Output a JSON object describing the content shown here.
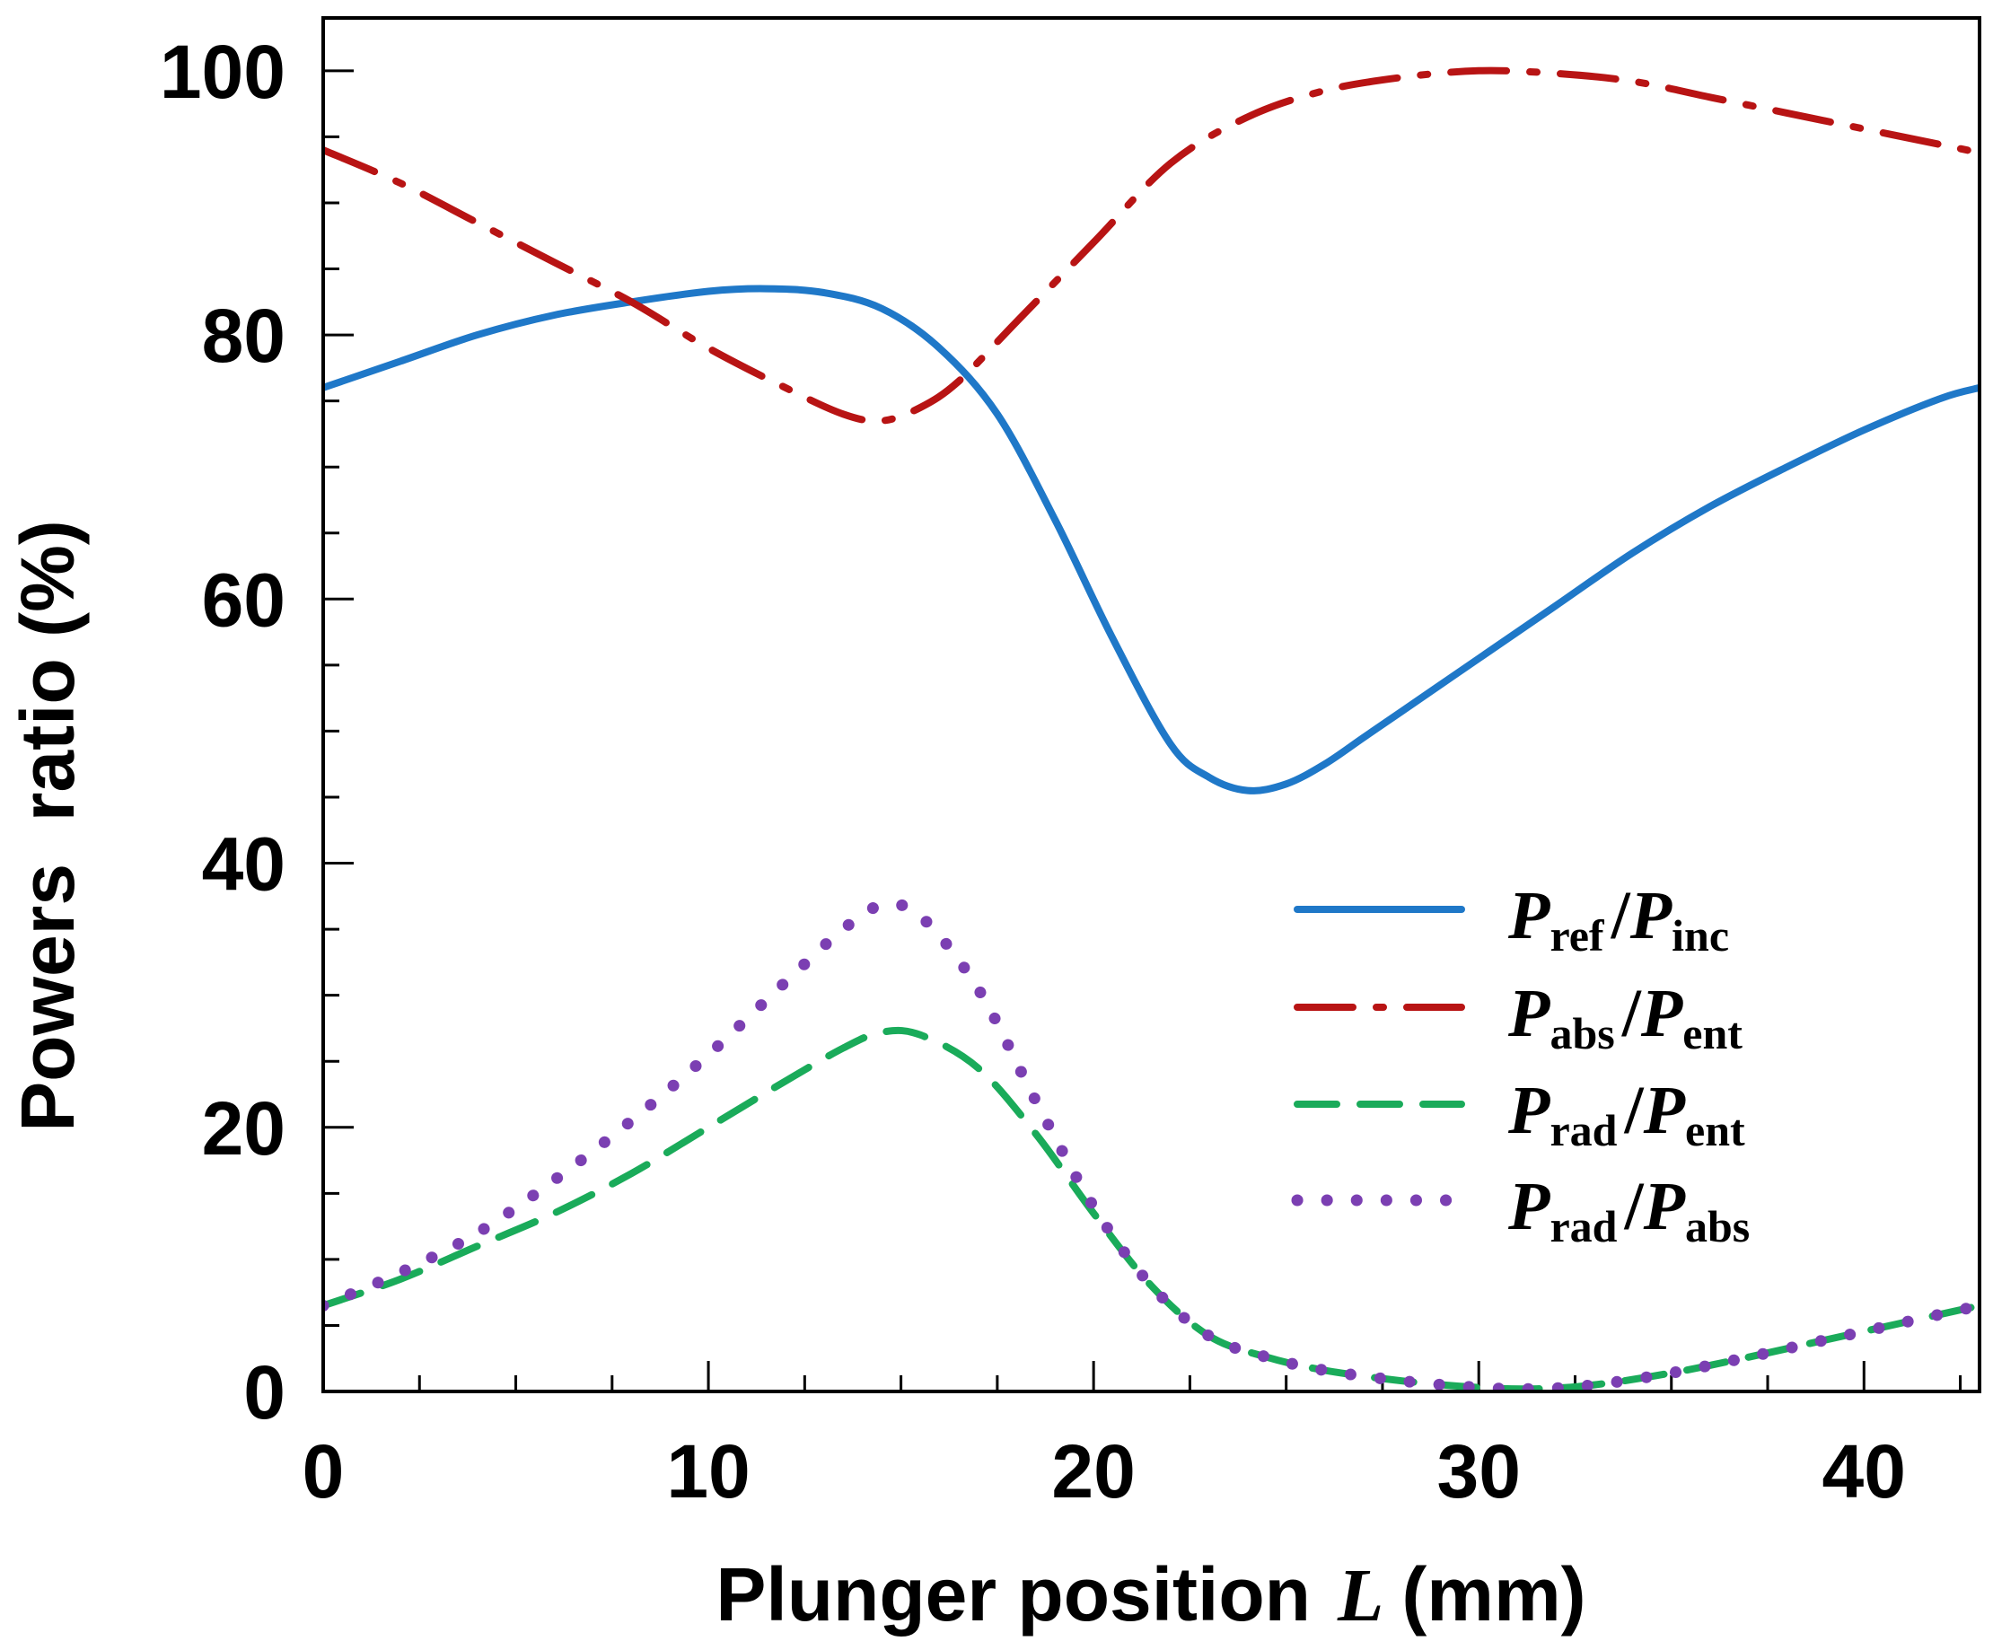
{
  "chart_data": {
    "type": "line",
    "title": "",
    "xlabel": {
      "prefix": "Plunger position",
      "variable": "L",
      "unit": "(mm)"
    },
    "ylabel": "Powers  ratio (%)",
    "xlim": [
      0,
      43
    ],
    "ylim": [
      0,
      104
    ],
    "x_ticks": [
      {
        "value": 0,
        "label": "0"
      },
      {
        "value": 10,
        "label": "10"
      },
      {
        "value": 20,
        "label": "20"
      },
      {
        "value": 30,
        "label": "30"
      },
      {
        "value": 40,
        "label": "40"
      }
    ],
    "y_ticks": [
      {
        "value": 0,
        "label": "0"
      },
      {
        "value": 20,
        "label": "20"
      },
      {
        "value": 40,
        "label": "40"
      },
      {
        "value": 60,
        "label": "60"
      },
      {
        "value": 80,
        "label": "80"
      },
      {
        "value": 100,
        "label": "100"
      }
    ],
    "x_minor_step": 2.5,
    "y_minor_step": 5,
    "legend_position": "center-right",
    "series": [
      {
        "id": "ref-inc",
        "name": "Pref/Pinc",
        "num": "P",
        "num_sub": "ref",
        "den": "P",
        "den_sub": "inc",
        "color": "#1f78c8",
        "style": "solid",
        "x": [
          0,
          2,
          4,
          6,
          8,
          10,
          11.5,
          13,
          14.5,
          16,
          17.5,
          19,
          20.5,
          22,
          23,
          24,
          25,
          26,
          27,
          28,
          30,
          32,
          34,
          36,
          38,
          40,
          42,
          43
        ],
        "y": [
          76,
          78,
          80,
          81.5,
          82.5,
          83.3,
          83.5,
          83.2,
          82,
          79,
          74,
          66,
          57,
          49,
          46.5,
          45.5,
          46,
          47.5,
          49.5,
          51.5,
          55.5,
          59.5,
          63.5,
          67,
          70,
          72.8,
          75.2,
          76
        ]
      },
      {
        "id": "abs-ent",
        "name": "Pabs/Pent",
        "num": "P",
        "num_sub": "abs",
        "den": "P",
        "den_sub": "ent",
        "color": "#b81414",
        "style": "dashdot",
        "x": [
          0,
          2,
          4,
          6,
          8,
          10,
          12,
          13.5,
          14.5,
          15.5,
          16.5,
          18,
          20,
          22,
          24,
          26,
          28,
          30,
          32,
          34,
          36,
          38,
          40,
          42,
          43
        ],
        "y": [
          94,
          91.5,
          88.5,
          85.5,
          82.5,
          79,
          76,
          74,
          73.5,
          74.5,
          76.5,
          81,
          87,
          93,
          96.5,
          98.5,
          99.5,
          100,
          99.8,
          99.2,
          98,
          96.8,
          95.6,
          94.4,
          93.8
        ]
      },
      {
        "id": "rad-ent",
        "name": "Prad/Pent",
        "num": "P",
        "num_sub": "rad",
        "den": "P",
        "den_sub": "ent",
        "color": "#1aab5a",
        "style": "dashed",
        "x": [
          0,
          2,
          4,
          6,
          8,
          10,
          12,
          13.5,
          14.5,
          15.5,
          17,
          18.5,
          20,
          21.5,
          23,
          24.5,
          26,
          28,
          30,
          31.5,
          33,
          35,
          37,
          39,
          41,
          43
        ],
        "y": [
          6.5,
          8.5,
          11,
          13.5,
          16.5,
          20,
          23.5,
          26,
          27.2,
          27,
          24.5,
          19.5,
          13.5,
          8,
          4.2,
          2.6,
          1.6,
          0.8,
          0.3,
          0.2,
          0.5,
          1.4,
          2.6,
          3.9,
          5.2,
          6.5
        ]
      },
      {
        "id": "rad-abs",
        "name": "Prad/Pabs",
        "num": "P",
        "num_sub": "rad",
        "den": "P",
        "den_sub": "abs",
        "color": "#7b3fb2",
        "style": "dotted",
        "x": [
          0,
          2,
          4,
          6,
          8,
          10,
          12,
          13.5,
          14.5,
          15.5,
          17,
          18.5,
          20,
          21.5,
          23,
          24.5,
          26,
          28,
          30,
          31.5,
          33,
          35,
          37,
          39,
          41,
          43
        ],
        "y": [
          6.5,
          9,
          12,
          16,
          20.5,
          25.5,
          31,
          35,
          36.8,
          36,
          30.5,
          22,
          14,
          8,
          4.2,
          2.6,
          1.6,
          0.8,
          0.3,
          0.2,
          0.5,
          1.4,
          2.6,
          3.9,
          5.2,
          6.5
        ]
      }
    ]
  }
}
